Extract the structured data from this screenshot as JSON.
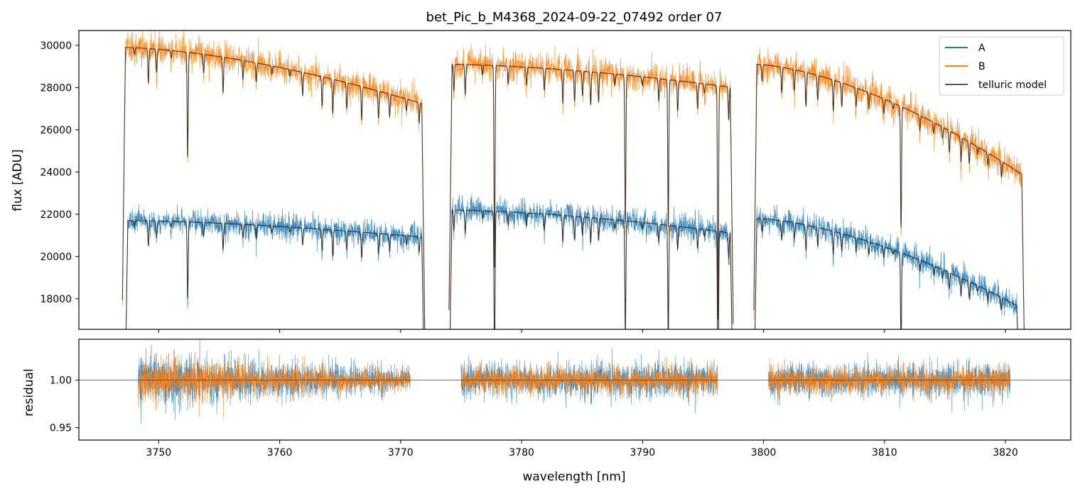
{
  "chart_data": [
    {
      "type": "line",
      "title": "bet_Pic_b_M4368_2024-09-22_07492  order 07",
      "xlabel": "",
      "ylabel": "flux [ADU]",
      "xlim": [
        3743.4,
        3825.4
      ],
      "ylim": [
        16550,
        30700
      ],
      "yticks": [
        18000,
        20000,
        22000,
        24000,
        26000,
        28000,
        30000
      ],
      "ytick_labels": [
        "18000",
        "20000",
        "22000",
        "24000",
        "26000",
        "28000",
        "30000"
      ],
      "legend": {
        "position": "top-right",
        "entries": [
          "A",
          "B",
          "telluric model"
        ]
      },
      "series": [
        {
          "name": "A",
          "color": "#1f77b4",
          "x_range": [
            3747.2,
            3821.2
          ],
          "segments": [
            [
              3747.2,
              3772.0
            ],
            [
              3774.0,
              3797.5
            ],
            [
              3799.2,
              3821.2
            ]
          ],
          "level_start_end": [
            [
              21700,
              20900
            ],
            [
              22200,
              21100
            ],
            [
              21800,
              17600
            ]
          ],
          "noise": 450
        },
        {
          "name": "B",
          "color": "#ff7f0e",
          "x_range": [
            3747.0,
            3821.6
          ],
          "segments": [
            [
              3747.0,
              3772.0
            ],
            [
              3774.0,
              3797.5
            ],
            [
              3799.2,
              3821.6
            ]
          ],
          "level_start_end": [
            [
              29900,
              27200
            ],
            [
              29100,
              28000
            ],
            [
              29100,
              23800
            ]
          ],
          "noise": 550
        },
        {
          "name": "telluric model",
          "color": "#555555",
          "note": "smooth model with absorption lines over A and B"
        }
      ]
    },
    {
      "type": "line",
      "xlabel": "wavelength [nm]",
      "ylabel": "residual",
      "xlim": [
        3743.4,
        3825.4
      ],
      "ylim": [
        0.937,
        1.043
      ],
      "xticks": [
        3750,
        3760,
        3770,
        3780,
        3790,
        3800,
        3810,
        3820
      ],
      "xtick_labels": [
        "3750",
        "3760",
        "3770",
        "3780",
        "3790",
        "3800",
        "3810",
        "3820"
      ],
      "yticks": [
        0.95,
        1.0
      ],
      "ytick_labels": [
        "0.95",
        "1.00"
      ],
      "reference_line": 1.0,
      "series": [
        {
          "name": "A",
          "color": "#1f77b4",
          "segments": [
            [
              3748.3,
              3770.8
            ],
            [
              3775.0,
              3796.2
            ],
            [
              3800.4,
              3820.4
            ]
          ]
        },
        {
          "name": "B",
          "color": "#ff7f0e",
          "segments": [
            [
              3748.3,
              3770.8
            ],
            [
              3775.0,
              3796.2
            ],
            [
              3800.4,
              3820.4
            ]
          ]
        }
      ]
    }
  ]
}
